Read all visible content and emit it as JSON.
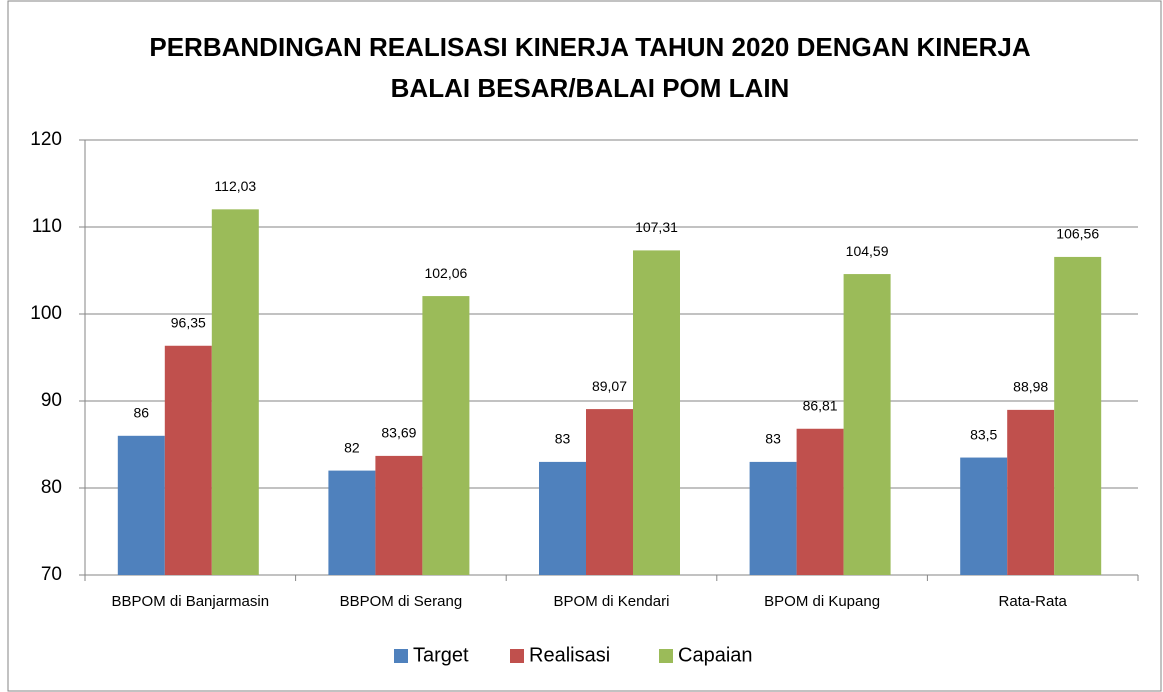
{
  "chart_data": {
    "type": "bar",
    "title": [
      "PERBANDINGAN REALISASI KINERJA TAHUN 2020 DENGAN KINERJA",
      "BALAI BESAR/BALAI POM LAIN"
    ],
    "categories": [
      "BBPOM di Banjarmasin",
      "BBPOM di Serang",
      "BPOM di Kendari",
      "BPOM di Kupang",
      "Rata-Rata"
    ],
    "series": [
      {
        "name": "Target",
        "color": "#4f81bd",
        "values": [
          86,
          82,
          83,
          83,
          83.5
        ],
        "value_labels": [
          "86",
          "82",
          "83",
          "83",
          "83,5"
        ]
      },
      {
        "name": "Realisasi",
        "color": "#c0504d",
        "values": [
          96.35,
          83.69,
          89.07,
          86.81,
          88.98
        ],
        "value_labels": [
          "96,35",
          "83,69",
          "89,07",
          "86,81",
          "88,98"
        ]
      },
      {
        "name": "Capaian",
        "color": "#9bbb59",
        "values": [
          112.03,
          102.06,
          107.31,
          104.59,
          106.56
        ],
        "value_labels": [
          "112,03",
          "102,06",
          "107,31",
          "104,59",
          "106,56"
        ]
      }
    ],
    "ylim": [
      70,
      120
    ],
    "yticks": [
      70,
      80,
      90,
      100,
      110,
      120
    ],
    "grid": true,
    "legend": "bottom"
  }
}
